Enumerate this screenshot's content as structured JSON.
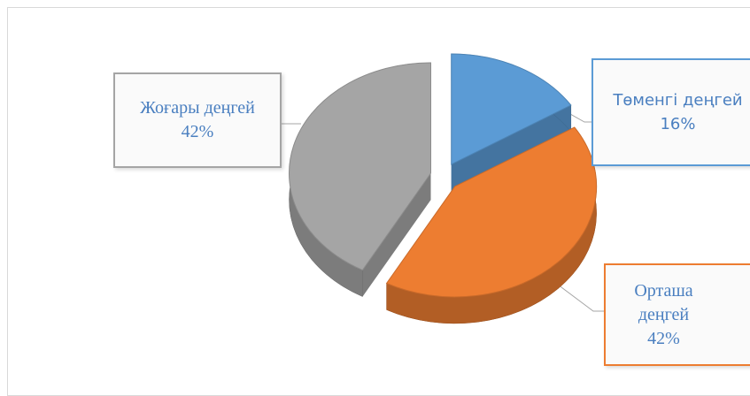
{
  "chart_data": {
    "type": "pie3d",
    "categories": [
      "Төменгі деңгей",
      "Орташа деңгей",
      "Жоғары деңгей"
    ],
    "values": [
      16,
      42,
      42
    ],
    "value_labels": [
      "16%",
      "42%",
      "42%"
    ],
    "colors": [
      "#5b9bd5",
      "#ed7d31",
      "#a5a5a5"
    ]
  }
}
